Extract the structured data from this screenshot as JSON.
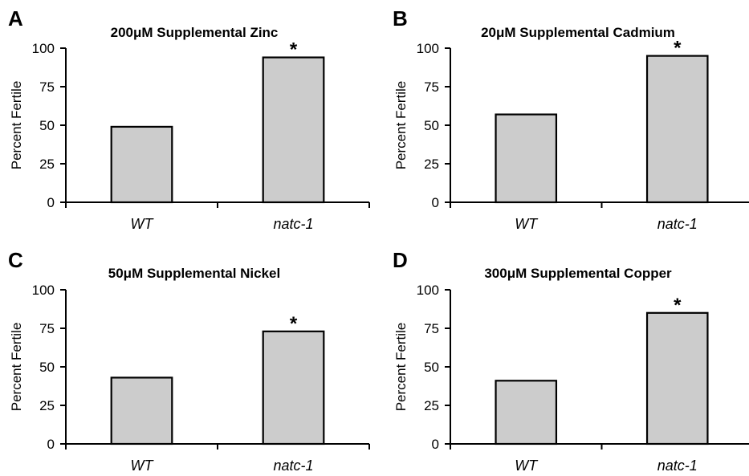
{
  "chart_data": [
    {
      "type": "bar",
      "panel": "A",
      "title": "200μM Supplemental Zinc",
      "ylabel": "Percent Fertile",
      "xlabel": "",
      "ylim": [
        0,
        100
      ],
      "yticks": [
        "0",
        "25",
        "50",
        "75",
        "100"
      ],
      "categories": [
        "WT",
        "natc-1"
      ],
      "values": [
        49,
        94
      ],
      "annotations": [
        "",
        "*"
      ]
    },
    {
      "type": "bar",
      "panel": "B",
      "title": "20μM Supplemental Cadmium",
      "ylabel": "Percent Fertile",
      "xlabel": "",
      "ylim": [
        0,
        100
      ],
      "yticks": [
        "0",
        "25",
        "50",
        "75",
        "100"
      ],
      "categories": [
        "WT",
        "natc-1"
      ],
      "values": [
        57,
        95
      ],
      "annotations": [
        "",
        "*"
      ]
    },
    {
      "type": "bar",
      "panel": "C",
      "title": "50μM Supplemental Nickel",
      "ylabel": "Percent Fertile",
      "xlabel": "",
      "ylim": [
        0,
        100
      ],
      "yticks": [
        "0",
        "25",
        "50",
        "75",
        "100"
      ],
      "categories": [
        "WT",
        "natc-1"
      ],
      "values": [
        43,
        73
      ],
      "annotations": [
        "",
        "*"
      ]
    },
    {
      "type": "bar",
      "panel": "D",
      "title": "300μM Supplemental Copper",
      "ylabel": "Percent Fertile",
      "xlabel": "",
      "ylim": [
        0,
        100
      ],
      "yticks": [
        "0",
        "25",
        "50",
        "75",
        "100"
      ],
      "categories": [
        "WT",
        "natc-1"
      ],
      "values": [
        41,
        85
      ],
      "annotations": [
        "",
        "*"
      ]
    }
  ]
}
